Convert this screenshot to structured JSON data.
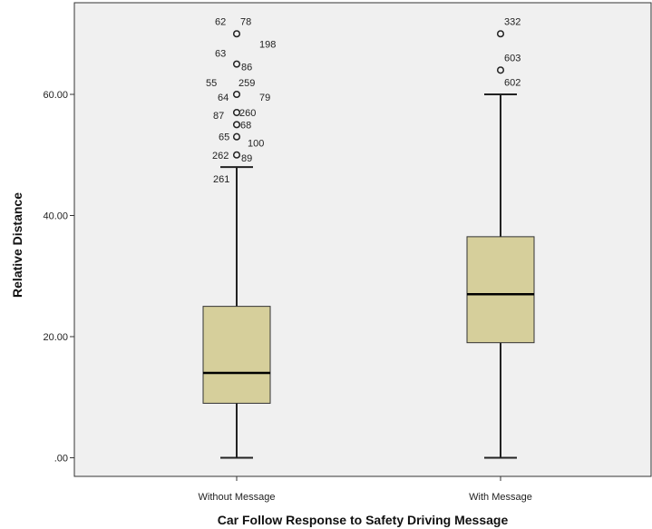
{
  "chart_data": {
    "type": "boxplot",
    "xlabel": "Car Follow Response to Safety Driving Message",
    "ylabel": "Relative Distance",
    "ylim": [
      0,
      71
    ],
    "yticks": [
      0,
      20,
      40,
      60
    ],
    "ytick_labels": [
      ".00",
      "20.00",
      "40.00",
      "60.00"
    ],
    "grid": false,
    "colors": {
      "box_fill": "#d6cf9b",
      "plot_bg": "#f0f0f0",
      "line": "#222222"
    },
    "categories": [
      "Without Message",
      "With Message"
    ],
    "boxes": [
      {
        "category": "Without Message",
        "whisker_low": 0,
        "q1": 9,
        "median": 14,
        "q3": 25,
        "whisker_high": 48,
        "outliers": [
          {
            "value": 70,
            "labels": [
              "62",
              "78",
              "198"
            ]
          },
          {
            "value": 65,
            "labels": [
              "63",
              "86"
            ]
          },
          {
            "value": 60,
            "labels": [
              "55",
              "259",
              "64",
              "79"
            ]
          },
          {
            "value": 57,
            "labels": [
              "87",
              "260"
            ]
          },
          {
            "value": 55,
            "labels": [
              "68"
            ]
          },
          {
            "value": 53,
            "labels": [
              "65",
              "100"
            ]
          },
          {
            "value": 50,
            "labels": [
              "262",
              "89",
              "261"
            ]
          }
        ]
      },
      {
        "category": "With Message",
        "whisker_low": 0,
        "q1": 19,
        "median": 27,
        "q3": 36.5,
        "whisker_high": 60,
        "outliers": [
          {
            "value": 70,
            "labels": [
              "332"
            ]
          },
          {
            "value": 64,
            "labels": [
              "603",
              "602"
            ]
          }
        ]
      }
    ]
  }
}
